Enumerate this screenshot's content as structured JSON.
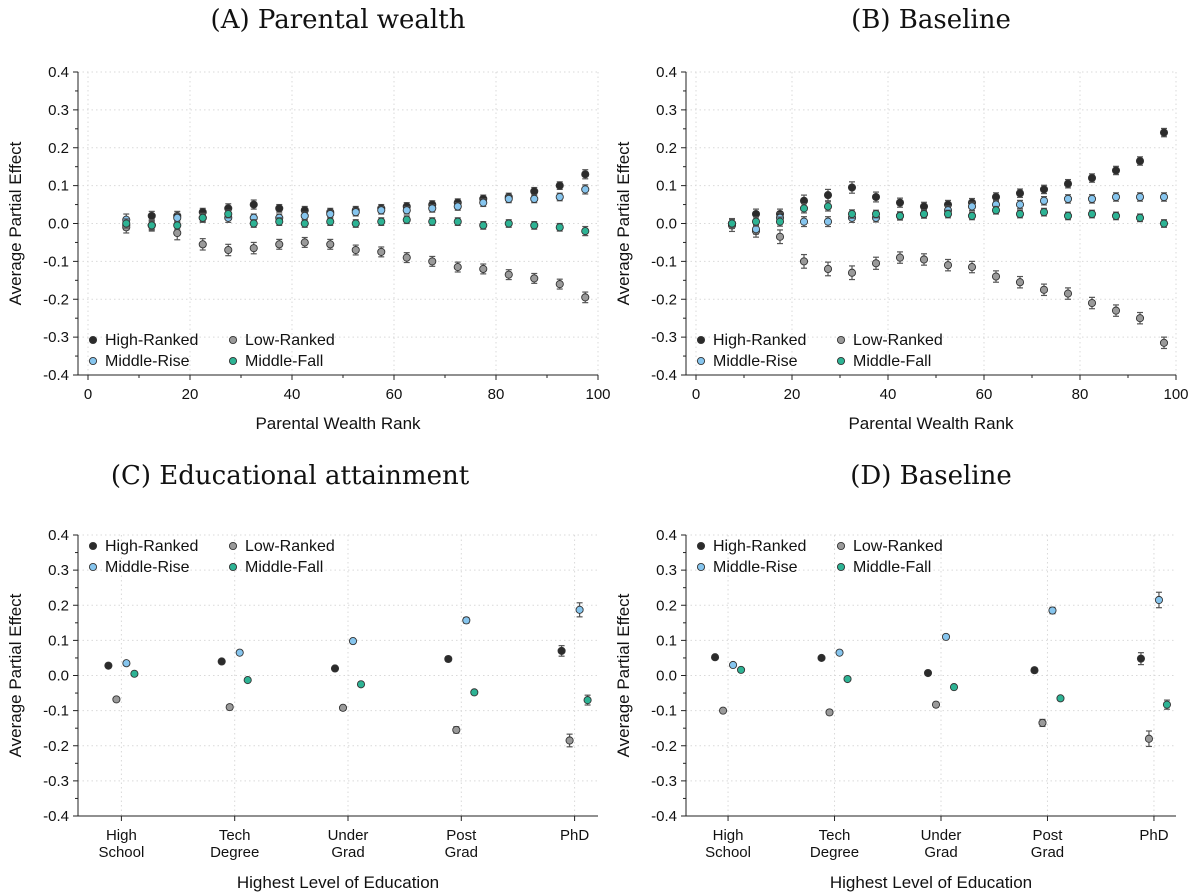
{
  "colors": {
    "High-Ranked": "#2b2b2b",
    "Low-Ranked": "#9a9a9a",
    "Middle-Rise": "#86c5ee",
    "Middle-Fall": "#2db394"
  },
  "chart_data": [
    {
      "type": "scatter",
      "title": "(A) Parental wealth",
      "xlabel": "Parental Wealth Rank",
      "ylabel": "Average Partial Effect",
      "xlim": [
        0,
        100
      ],
      "ylim": [
        -0.4,
        0.4
      ],
      "xticks": [
        "0",
        "20",
        "40",
        "60",
        "80",
        "100"
      ],
      "yticks": [
        "-0.4",
        "-0.3",
        "-0.2",
        "-0.1",
        "0.0",
        "0.1",
        "0.2",
        "0.3",
        "0.4"
      ],
      "grid": true,
      "legend": "bottom-left",
      "x": [
        7.5,
        12.5,
        17.5,
        22.5,
        27.5,
        32.5,
        37.5,
        42.5,
        47.5,
        52.5,
        57.5,
        62.5,
        67.5,
        72.5,
        77.5,
        82.5,
        87.5,
        92.5,
        97.5
      ],
      "series": [
        {
          "name": "High-Ranked",
          "values": [
            -0.005,
            0.02,
            0.02,
            0.03,
            0.04,
            0.05,
            0.04,
            0.035,
            0.03,
            0.035,
            0.04,
            0.045,
            0.05,
            0.055,
            0.065,
            0.07,
            0.085,
            0.1,
            0.13
          ],
          "err": [
            0.012,
            0.012,
            0.012,
            0.01,
            0.012,
            0.012,
            0.01,
            0.01,
            0.01,
            0.01,
            0.01,
            0.01,
            0.01,
            0.01,
            0.01,
            0.01,
            0.01,
            0.01,
            0.012
          ]
        },
        {
          "name": "Low-Ranked",
          "values": [
            -0.01,
            -0.005,
            -0.025,
            -0.055,
            -0.07,
            -0.065,
            -0.055,
            -0.05,
            -0.055,
            -0.07,
            -0.075,
            -0.09,
            -0.1,
            -0.115,
            -0.12,
            -0.135,
            -0.145,
            -0.16,
            -0.195
          ],
          "err": [
            0.015,
            0.015,
            0.018,
            0.015,
            0.015,
            0.015,
            0.013,
            0.013,
            0.013,
            0.013,
            0.013,
            0.013,
            0.013,
            0.013,
            0.013,
            0.013,
            0.013,
            0.013,
            0.014
          ]
        },
        {
          "name": "Middle-Rise",
          "values": [
            0.01,
            -0.005,
            0.015,
            0.015,
            0.015,
            0.015,
            0.015,
            0.02,
            0.025,
            0.03,
            0.035,
            0.035,
            0.04,
            0.045,
            0.055,
            0.065,
            0.065,
            0.07,
            0.09
          ],
          "err": [
            0.015,
            0.012,
            0.012,
            0.012,
            0.012,
            0.01,
            0.01,
            0.01,
            0.01,
            0.01,
            0.01,
            0.01,
            0.01,
            0.01,
            0.01,
            0.01,
            0.01,
            0.01,
            0.012
          ]
        },
        {
          "name": "Middle-Fall",
          "values": [
            0.0,
            -0.005,
            -0.005,
            0.015,
            0.025,
            0.0,
            0.005,
            0.0,
            0.005,
            0.0,
            0.005,
            0.01,
            0.005,
            0.005,
            -0.005,
            0.0,
            -0.005,
            -0.01,
            -0.02
          ],
          "err": [
            0.012,
            0.01,
            0.01,
            0.01,
            0.01,
            0.01,
            0.01,
            0.01,
            0.01,
            0.01,
            0.01,
            0.01,
            0.01,
            0.01,
            0.01,
            0.01,
            0.01,
            0.01,
            0.012
          ]
        }
      ]
    },
    {
      "type": "scatter",
      "title": "(B) Baseline",
      "xlabel": "Parental Wealth Rank",
      "ylabel": "Average Partial Effect",
      "xlim": [
        0,
        100
      ],
      "ylim": [
        -0.4,
        0.4
      ],
      "xticks": [
        "0",
        "20",
        "40",
        "60",
        "80",
        "100"
      ],
      "yticks": [
        "-0.4",
        "-0.3",
        "-0.2",
        "-0.1",
        "0.0",
        "0.1",
        "0.2",
        "0.3",
        "0.4"
      ],
      "grid": true,
      "legend": "bottom-left",
      "x": [
        7.5,
        12.5,
        17.5,
        22.5,
        27.5,
        32.5,
        37.5,
        42.5,
        47.5,
        52.5,
        57.5,
        62.5,
        67.5,
        72.5,
        77.5,
        82.5,
        87.5,
        92.5,
        97.5
      ],
      "series": [
        {
          "name": "High-Ranked",
          "values": [
            0.0,
            0.025,
            0.025,
            0.06,
            0.075,
            0.095,
            0.07,
            0.055,
            0.045,
            0.05,
            0.055,
            0.07,
            0.08,
            0.09,
            0.105,
            0.12,
            0.14,
            0.165,
            0.24
          ],
          "err": [
            0.013,
            0.013,
            0.013,
            0.015,
            0.015,
            0.015,
            0.013,
            0.012,
            0.011,
            0.011,
            0.011,
            0.011,
            0.011,
            0.011,
            0.011,
            0.011,
            0.011,
            0.011,
            0.011
          ]
        },
        {
          "name": "Low-Ranked",
          "values": [
            -0.005,
            -0.02,
            -0.035,
            -0.1,
            -0.12,
            -0.13,
            -0.105,
            -0.09,
            -0.095,
            -0.11,
            -0.115,
            -0.14,
            -0.155,
            -0.175,
            -0.185,
            -0.21,
            -0.23,
            -0.25,
            -0.315
          ],
          "err": [
            0.016,
            0.016,
            0.018,
            0.018,
            0.018,
            0.018,
            0.016,
            0.015,
            0.015,
            0.015,
            0.015,
            0.015,
            0.015,
            0.015,
            0.015,
            0.015,
            0.015,
            0.015,
            0.015
          ]
        },
        {
          "name": "Middle-Rise",
          "values": [
            0.0,
            -0.015,
            0.015,
            0.005,
            0.005,
            0.015,
            0.015,
            0.02,
            0.025,
            0.035,
            0.045,
            0.05,
            0.05,
            0.06,
            0.065,
            0.065,
            0.07,
            0.07,
            0.07
          ],
          "err": [
            0.013,
            0.013,
            0.013,
            0.013,
            0.013,
            0.012,
            0.011,
            0.011,
            0.011,
            0.011,
            0.011,
            0.011,
            0.011,
            0.011,
            0.011,
            0.011,
            0.011,
            0.011,
            0.011
          ]
        },
        {
          "name": "Middle-Fall",
          "values": [
            0.0,
            0.005,
            0.005,
            0.04,
            0.045,
            0.025,
            0.025,
            0.02,
            0.025,
            0.025,
            0.02,
            0.035,
            0.025,
            0.03,
            0.02,
            0.025,
            0.02,
            0.015,
            0.0
          ],
          "err": [
            0.012,
            0.012,
            0.012,
            0.012,
            0.012,
            0.011,
            0.01,
            0.01,
            0.01,
            0.01,
            0.01,
            0.01,
            0.01,
            0.01,
            0.01,
            0.01,
            0.01,
            0.01,
            0.01
          ]
        }
      ]
    },
    {
      "type": "scatter",
      "title": "(C) Educational attainment",
      "xlabel": "Highest Level of Education",
      "ylabel": "Average Partial Effect",
      "ylim": [
        -0.4,
        0.4
      ],
      "categories": [
        [
          "High",
          "School"
        ],
        [
          "Tech",
          "Degree"
        ],
        [
          "Under",
          "Grad"
        ],
        [
          "Post",
          "Grad"
        ],
        [
          "PhD"
        ]
      ],
      "yticks": [
        "-0.4",
        "-0.3",
        "-0.2",
        "-0.1",
        "0.0",
        "0.1",
        "0.2",
        "0.3",
        "0.4"
      ],
      "grid": true,
      "legend": "top-left",
      "series": [
        {
          "name": "High-Ranked",
          "values": [
            0.028,
            0.04,
            0.02,
            0.047,
            0.07
          ],
          "err": [
            0.005,
            0.006,
            0.006,
            0.007,
            0.015
          ]
        },
        {
          "name": "Low-Ranked",
          "values": [
            -0.068,
            -0.09,
            -0.092,
            -0.155,
            -0.185
          ],
          "err": [
            0.005,
            0.007,
            0.007,
            0.009,
            0.018
          ]
        },
        {
          "name": "Middle-Rise",
          "values": [
            0.035,
            0.065,
            0.098,
            0.157,
            0.187
          ],
          "err": [
            0.005,
            0.006,
            0.006,
            0.008,
            0.02
          ]
        },
        {
          "name": "Middle-Fall",
          "values": [
            0.005,
            -0.013,
            -0.025,
            -0.048,
            -0.07
          ],
          "err": [
            0.004,
            0.005,
            0.005,
            0.006,
            0.014
          ]
        }
      ]
    },
    {
      "type": "scatter",
      "title": "(D) Baseline",
      "xlabel": "Highest Level of Education",
      "ylabel": "Average Partial Effect",
      "ylim": [
        -0.4,
        0.4
      ],
      "categories": [
        [
          "High",
          "School"
        ],
        [
          "Tech",
          "Degree"
        ],
        [
          "Under",
          "Grad"
        ],
        [
          "Post",
          "Grad"
        ],
        [
          "PhD"
        ]
      ],
      "yticks": [
        "-0.4",
        "-0.3",
        "-0.2",
        "-0.1",
        "0.0",
        "0.1",
        "0.2",
        "0.3",
        "0.4"
      ],
      "grid": true,
      "legend": "top-left",
      "series": [
        {
          "name": "High-Ranked",
          "values": [
            0.052,
            0.05,
            0.007,
            0.015,
            0.048
          ],
          "err": [
            0.005,
            0.006,
            0.006,
            0.007,
            0.017
          ]
        },
        {
          "name": "Low-Ranked",
          "values": [
            -0.1,
            -0.105,
            -0.083,
            -0.135,
            -0.18
          ],
          "err": [
            0.005,
            0.007,
            0.007,
            0.01,
            0.022
          ]
        },
        {
          "name": "Middle-Rise",
          "values": [
            0.03,
            0.065,
            0.11,
            0.185,
            0.215
          ],
          "err": [
            0.005,
            0.006,
            0.006,
            0.009,
            0.022
          ]
        },
        {
          "name": "Middle-Fall",
          "values": [
            0.016,
            -0.01,
            -0.033,
            -0.065,
            -0.083
          ],
          "err": [
            0.004,
            0.005,
            0.005,
            0.006,
            0.013
          ]
        }
      ]
    }
  ]
}
